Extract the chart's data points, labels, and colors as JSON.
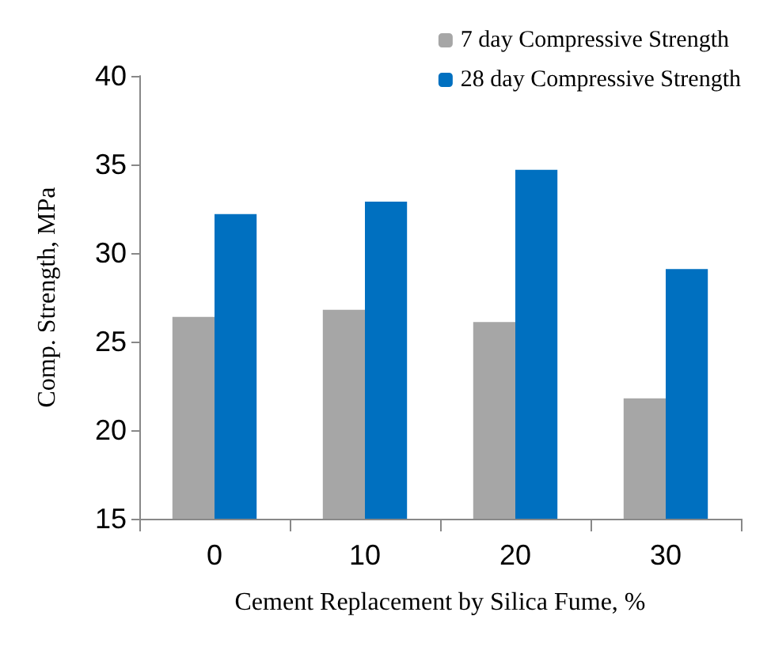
{
  "chart_data": {
    "type": "bar",
    "xlabel": "Cement Replacement by Silica Fume, %",
    "ylabel": "Comp. Strength, MPa",
    "categories": [
      "0",
      "10",
      "20",
      "30"
    ],
    "series": [
      {
        "name": "7 day Compressive Strength",
        "color": "#a6a6a6",
        "values": [
          26.4,
          26.8,
          26.1,
          21.8
        ]
      },
      {
        "name": "28 day Compressive Strength",
        "color": "#0070c0",
        "values": [
          32.2,
          32.9,
          34.7,
          29.1
        ]
      }
    ],
    "ylim": [
      15,
      40
    ],
    "yticks": [
      15,
      20,
      25,
      30,
      35,
      40
    ],
    "grid": false,
    "legend": "top right"
  }
}
